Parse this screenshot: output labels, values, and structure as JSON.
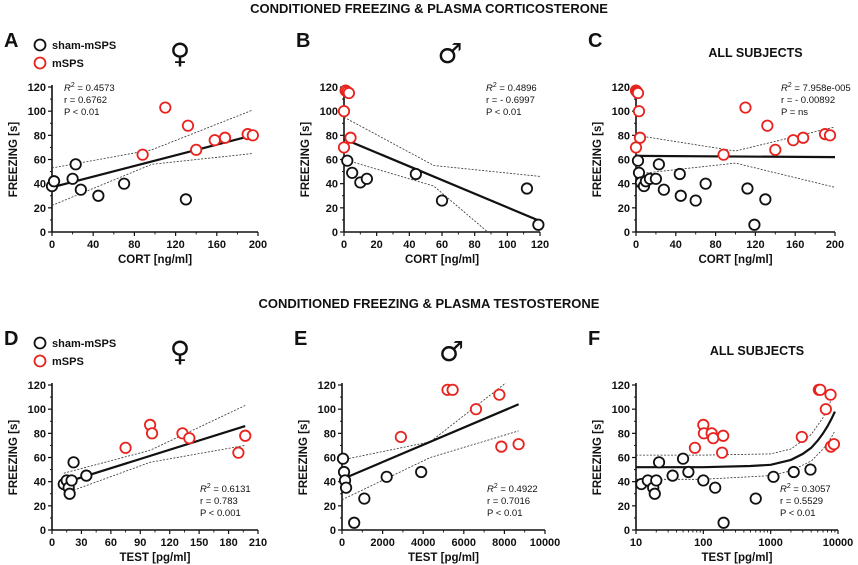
{
  "sections": {
    "cort": "CONDITIONED FREEZING & PLASMA CORTICOSTERONE",
    "test": "CONDITIONED FREEZING & PLASMA TESTOSTERONE"
  },
  "legend": {
    "sham": "sham-mSPS",
    "mSPS": "mSPS"
  },
  "colors": {
    "sham": "#111111",
    "mSPS": "#e8231e"
  },
  "chart_data": [
    {
      "id": "A",
      "type": "scatter",
      "letter": "A",
      "symbol": "♀",
      "title": "",
      "xlabel": "CORT [ng/ml]",
      "ylabel": "FREEZING [s]",
      "xscale": "linear",
      "xlim": [
        0,
        200
      ],
      "ylim": [
        0,
        120
      ],
      "xticks": [
        0,
        40,
        80,
        120,
        160,
        200
      ],
      "xtick_labels": [
        "0",
        "40",
        "80",
        "120",
        "160",
        "200"
      ],
      "yticks": [
        0,
        20,
        40,
        60,
        80,
        100,
        120
      ],
      "stats": {
        "r2": "R² = 0.4573",
        "r": "r = 0.6762",
        "p": "P < 0.01"
      },
      "stats_pos": "top-left",
      "legend": true,
      "series": [
        {
          "name": "sham-mSPS",
          "x": [
            0,
            2,
            20,
            23,
            28,
            45,
            70,
            130
          ],
          "y": [
            38,
            42,
            44,
            56,
            35,
            30,
            40,
            27
          ]
        },
        {
          "name": "mSPS",
          "x": [
            88,
            110,
            132,
            140,
            158,
            168,
            190,
            195
          ],
          "y": [
            64,
            103,
            88,
            68,
            76,
            78,
            81,
            80
          ]
        }
      ],
      "fit": {
        "kind": "linear",
        "points": [
          [
            0,
            37
          ],
          [
            195,
            80
          ]
        ],
        "ci_upper": [
          [
            0,
            53
          ],
          [
            97,
            68
          ],
          [
            195,
            101
          ]
        ],
        "ci_lower": [
          [
            0,
            22
          ],
          [
            97,
            56
          ],
          [
            195,
            65
          ]
        ]
      }
    },
    {
      "id": "B",
      "type": "scatter",
      "letter": "B",
      "symbol": "♂",
      "title": "",
      "xlabel": "CORT [ng/ml]",
      "ylabel": "FREEZING [s]",
      "xscale": "linear",
      "xlim": [
        0,
        120
      ],
      "ylim": [
        0,
        120
      ],
      "xticks": [
        0,
        20,
        40,
        60,
        80,
        100,
        120
      ],
      "xtick_labels": [
        "0",
        "20",
        "40",
        "60",
        "80",
        "100",
        "120"
      ],
      "yticks": [
        0,
        20,
        40,
        60,
        80,
        100,
        120
      ],
      "stats": {
        "r2": "R² = 0.4896",
        "r": "r = - 0.6997",
        "p": "P < 0.01"
      },
      "stats_pos": "top-right",
      "legend": false,
      "series": [
        {
          "name": "sham-mSPS",
          "x": [
            2,
            5,
            10,
            14,
            44,
            60,
            112,
            119
          ],
          "y": [
            59,
            49,
            41,
            44,
            48,
            26,
            36,
            6
          ]
        },
        {
          "name": "mSPS",
          "x": [
            1,
            2,
            3,
            0,
            0,
            4
          ],
          "y": [
            117,
            116,
            115,
            100,
            70,
            78
          ]
        }
      ],
      "fit": {
        "kind": "linear",
        "points": [
          [
            0,
            77
          ],
          [
            120,
            9
          ]
        ],
        "ci_upper": [
          [
            0,
            95
          ],
          [
            55,
            55
          ],
          [
            120,
            46
          ]
        ],
        "ci_lower": [
          [
            0,
            60
          ],
          [
            55,
            38
          ],
          [
            88,
            0
          ]
        ]
      }
    },
    {
      "id": "C",
      "type": "scatter",
      "letter": "C",
      "symbol": "",
      "title": "ALL SUBJECTS",
      "xlabel": "CORT [ng/ml]",
      "ylabel": "FREEZING [s]",
      "xscale": "linear",
      "xlim": [
        0,
        200
      ],
      "ylim": [
        0,
        120
      ],
      "xticks": [
        0,
        40,
        80,
        120,
        160,
        200
      ],
      "xtick_labels": [
        "0",
        "40",
        "80",
        "120",
        "160",
        "200"
      ],
      "yticks": [
        0,
        20,
        40,
        60,
        80,
        100,
        120
      ],
      "stats": {
        "r2": "R² = 7.958e-005",
        "r": "r = - 0.00892",
        "p": "P = ns"
      },
      "stats_pos": "top-right",
      "legend": false,
      "series": [
        {
          "name": "sham-mSPS",
          "x": [
            2,
            3,
            5,
            8,
            10,
            14,
            20,
            23,
            28,
            44,
            45,
            60,
            70,
            112,
            119,
            130
          ],
          "y": [
            59,
            49,
            41,
            38,
            42,
            44,
            44,
            56,
            35,
            48,
            30,
            26,
            40,
            36,
            6,
            27
          ]
        },
        {
          "name": "mSPS",
          "x": [
            0,
            1,
            2,
            3,
            0,
            4,
            88,
            110,
            132,
            140,
            158,
            168,
            190,
            195
          ],
          "y": [
            117,
            116,
            115,
            100,
            70,
            78,
            64,
            103,
            88,
            68,
            76,
            78,
            81,
            80
          ]
        }
      ],
      "fit": {
        "kind": "linear",
        "points": [
          [
            0,
            63
          ],
          [
            200,
            62
          ]
        ],
        "ci_upper": [
          [
            0,
            80
          ],
          [
            100,
            67
          ],
          [
            200,
            87
          ]
        ],
        "ci_lower": [
          [
            0,
            48
          ],
          [
            100,
            57
          ],
          [
            200,
            37
          ]
        ]
      }
    },
    {
      "id": "D",
      "type": "scatter",
      "letter": "D",
      "symbol": "♀",
      "title": "",
      "xlabel": "TEST [pg/ml]",
      "ylabel": "FREEZING [s]",
      "xscale": "linear",
      "xlim": [
        0,
        210
      ],
      "ylim": [
        0,
        120
      ],
      "xticks": [
        0,
        30,
        60,
        90,
        120,
        150,
        180,
        210
      ],
      "xtick_labels": [
        "0",
        "30",
        "60",
        "90",
        "120",
        "150",
        "180",
        "210"
      ],
      "yticks": [
        0,
        20,
        40,
        60,
        80,
        100,
        120
      ],
      "stats": {
        "r2": "R² = 0.6131",
        "r": "r = 0.783",
        "p": "P < 0.001"
      },
      "stats_pos": "bottom-right",
      "legend": true,
      "series": [
        {
          "name": "sham-mSPS",
          "x": [
            12,
            15,
            17,
            18,
            20,
            22,
            35
          ],
          "y": [
            38,
            41,
            35,
            30,
            41,
            56,
            45
          ]
        },
        {
          "name": "mSPS",
          "x": [
            75,
            100,
            102,
            133,
            140,
            190,
            197
          ],
          "y": [
            68,
            87,
            80,
            80,
            76,
            64,
            78
          ]
        }
      ],
      "fit": {
        "kind": "linear",
        "points": [
          [
            12,
            39
          ],
          [
            197,
            86
          ]
        ],
        "ci_upper": [
          [
            12,
            47
          ],
          [
            100,
            66
          ],
          [
            197,
            103
          ]
        ],
        "ci_lower": [
          [
            12,
            30
          ],
          [
            100,
            56
          ],
          [
            197,
            70
          ]
        ]
      }
    },
    {
      "id": "E",
      "type": "scatter",
      "letter": "E",
      "symbol": "♂",
      "title": "",
      "xlabel": "TEST [pg/ml]",
      "ylabel": "FREEZING [s]",
      "xscale": "linear",
      "xlim": [
        0,
        10000
      ],
      "ylim": [
        0,
        120
      ],
      "xticks": [
        0,
        2000,
        4000,
        6000,
        8000,
        10000
      ],
      "xtick_labels": [
        "0",
        "2000",
        "4000",
        "6000",
        "8000",
        "10000"
      ],
      "yticks": [
        0,
        20,
        40,
        60,
        80,
        100,
        120
      ],
      "stats": {
        "r2": "R² = 0.4922",
        "r": "r = 0.7016",
        "p": "P < 0.01"
      },
      "stats_pos": "bottom-right",
      "legend": false,
      "series": [
        {
          "name": "sham-mSPS",
          "x": [
            50,
            100,
            150,
            200,
            600,
            1100,
            2200,
            3900
          ],
          "y": [
            59,
            48,
            41,
            35,
            6,
            26,
            44,
            48
          ]
        },
        {
          "name": "mSPS",
          "x": [
            2900,
            5200,
            5450,
            6600,
            7750,
            7850,
            8700
          ],
          "y": [
            77,
            116,
            116,
            100,
            112,
            69,
            71
          ]
        }
      ],
      "fit": {
        "kind": "linear",
        "points": [
          [
            0,
            42
          ],
          [
            8700,
            104
          ]
        ],
        "ci_upper": [
          [
            0,
            58
          ],
          [
            4350,
            73
          ],
          [
            8700,
            130
          ]
        ],
        "ci_lower": [
          [
            0,
            25
          ],
          [
            4350,
            60
          ],
          [
            8700,
            82
          ]
        ]
      }
    },
    {
      "id": "F",
      "type": "scatter",
      "letter": "F",
      "symbol": "",
      "title": "ALL SUBJECTS",
      "xlabel": "TEST [pg/ml]",
      "ylabel": "FREEZING [s]",
      "xscale": "log",
      "xlim": [
        10,
        10000
      ],
      "ylim": [
        0,
        120
      ],
      "xticks": [
        10,
        100,
        1000,
        10000
      ],
      "xtick_labels": [
        "10",
        "100",
        "1000",
        "10000"
      ],
      "yticks": [
        0,
        20,
        40,
        60,
        80,
        100,
        120
      ],
      "stats": {
        "r2": "R² = 0.3057",
        "r": "r = 0.5529",
        "p": "P < 0.01"
      },
      "stats_pos": "bottom-right",
      "legend": false,
      "series": [
        {
          "name": "sham-mSPS",
          "x": [
            12,
            15,
            18,
            19,
            20,
            22,
            35,
            50,
            60,
            100,
            150,
            200,
            600,
            1100,
            2200,
            3900
          ],
          "y": [
            38,
            41,
            35,
            30,
            41,
            56,
            45,
            59,
            48,
            41,
            35,
            6,
            26,
            44,
            48,
            50
          ]
        },
        {
          "name": "mSPS",
          "x": [
            75,
            100,
            102,
            133,
            140,
            190,
            197,
            2900,
            5200,
            5450,
            6600,
            7750,
            7850,
            8700
          ],
          "y": [
            68,
            87,
            80,
            80,
            76,
            64,
            78,
            77,
            116,
            116,
            100,
            112,
            69,
            71
          ]
        }
      ],
      "fit": {
        "kind": "curve",
        "points": [
          [
            10,
            52
          ],
          [
            100,
            52
          ],
          [
            500,
            53
          ],
          [
            1000,
            54
          ],
          [
            2000,
            58
          ],
          [
            3000,
            63
          ],
          [
            4000,
            68
          ],
          [
            5000,
            74
          ],
          [
            6000,
            80
          ],
          [
            7000,
            86
          ],
          [
            8000,
            92
          ],
          [
            9000,
            98
          ]
        ],
        "ci_upper": [
          [
            10,
            62
          ],
          [
            100,
            62
          ],
          [
            1000,
            63
          ],
          [
            2000,
            67
          ],
          [
            4000,
            79
          ],
          [
            6000,
            93
          ],
          [
            8000,
            108
          ],
          [
            9000,
            115
          ]
        ],
        "ci_lower": [
          [
            10,
            42
          ],
          [
            100,
            42
          ],
          [
            1000,
            45
          ],
          [
            2000,
            49
          ],
          [
            4000,
            57
          ],
          [
            6000,
            67
          ],
          [
            8000,
            77
          ],
          [
            9000,
            82
          ]
        ]
      }
    }
  ]
}
